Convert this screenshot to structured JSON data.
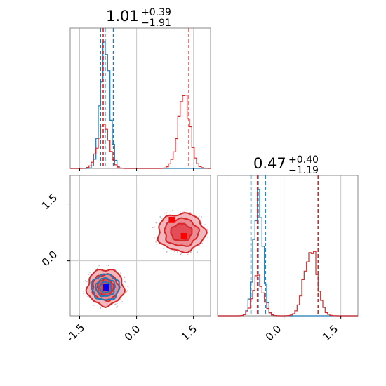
{
  "chart_data": {
    "type": "corner",
    "colors": {
      "primary": "#1f77b4",
      "secondary": "#d62728"
    },
    "axis_range": {
      "x": [
        -1.75,
        1.95
      ],
      "y": [
        -1.45,
        2.25
      ]
    },
    "grid": true,
    "ticks": {
      "values": [
        -1.5,
        0.0,
        1.5
      ],
      "labels": [
        "-1.5",
        "0.0",
        "1.5"
      ],
      "y_labels": [
        "1.5",
        "0.0"
      ]
    },
    "titles": [
      {
        "param": "x",
        "value": "1.01",
        "plus": "+0.39",
        "minus": "−1.91"
      },
      {
        "param": "y",
        "value": "0.47",
        "plus": "+0.40",
        "minus": "−1.19"
      }
    ],
    "marginal_x": {
      "blue": {
        "lines": [
          -0.95,
          -0.83,
          -0.61
        ],
        "peaks": [
          {
            "mu": -0.83,
            "sigma": 0.12,
            "amp": 1.0
          }
        ]
      },
      "red": {
        "lines": [
          -0.88,
          1.38
        ],
        "peaks": [
          {
            "mu": -0.88,
            "sigma": 0.15,
            "amp": 0.32
          },
          {
            "mu": 1.25,
            "sigma": 0.16,
            "amp": 0.55
          }
        ]
      }
    },
    "marginal_y": {
      "blue": {
        "lines": [
          -0.87,
          -0.68,
          -0.49
        ],
        "peaks": [
          {
            "mu": -0.68,
            "sigma": 0.12,
            "amp": 1.0
          }
        ]
      },
      "red": {
        "lines": [
          -0.7,
          0.9
        ],
        "peaks": [
          {
            "mu": -0.68,
            "sigma": 0.14,
            "amp": 0.3
          },
          {
            "mu": 0.7,
            "sigma": 0.17,
            "amp": 0.55
          }
        ]
      }
    },
    "joint": {
      "red_modes": [
        {
          "x": -0.82,
          "y": -0.7,
          "rx": 0.48,
          "ry": 0.48
        },
        {
          "x": 1.18,
          "y": 0.75,
          "rx": 0.62,
          "ry": 0.5
        }
      ],
      "blue_mode": {
        "x": -0.82,
        "y": -0.7,
        "rx": 0.36,
        "ry": 0.34
      },
      "markers": [
        {
          "x": 0.93,
          "y": 1.08,
          "color": "#ff0000"
        },
        {
          "x": 1.25,
          "y": 0.65,
          "color": "#ff0000"
        },
        {
          "x": -0.8,
          "y": -0.7,
          "color": "#0000ff"
        }
      ]
    }
  }
}
